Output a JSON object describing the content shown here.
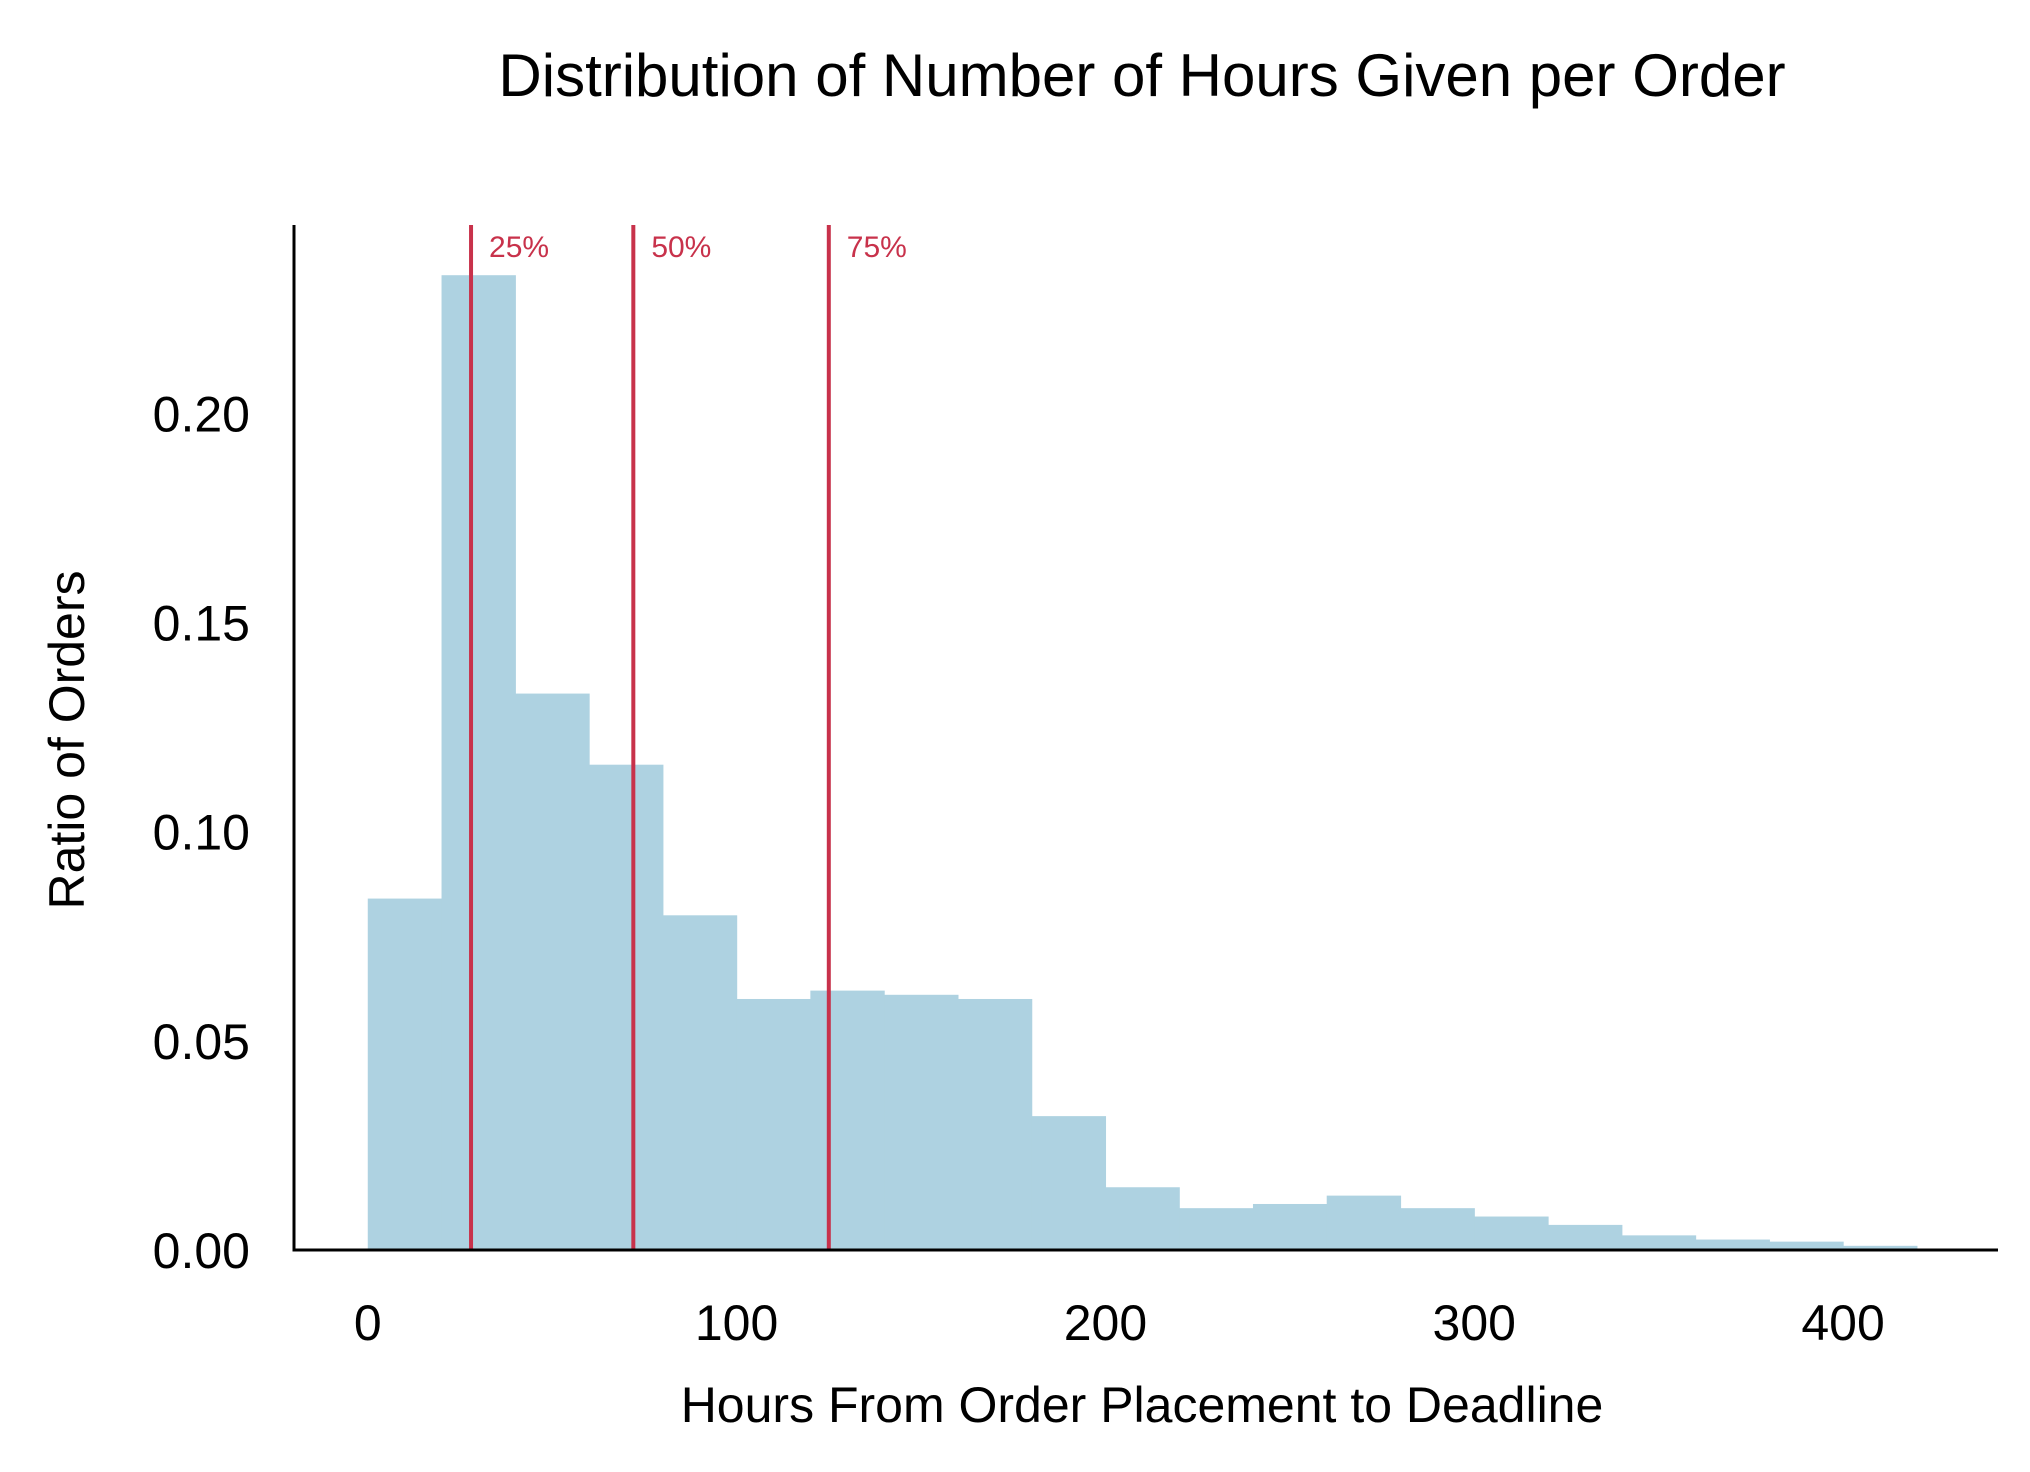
{
  "chart_data": {
    "type": "bar",
    "subtype": "histogram",
    "title": "Distribution of Number of Hours Given per Order",
    "xlabel": "Hours From Order Placement to Deadline",
    "ylabel": "Ratio of Orders",
    "xlim": [
      -20,
      442
    ],
    "ylim": [
      0,
      0.245
    ],
    "xticks": [
      0,
      100,
      200,
      300,
      400
    ],
    "xtick_labels": [
      "0",
      "100",
      "200",
      "300",
      "400"
    ],
    "yticks": [
      0,
      0.05,
      0.1,
      0.15,
      0.2
    ],
    "ytick_labels": [
      "0.00",
      "0.05",
      "0.10",
      "0.15",
      "0.20"
    ],
    "bin_width": 20,
    "bin_edges": [
      0,
      20,
      40,
      60,
      80,
      100,
      120,
      140,
      160,
      180,
      200,
      220,
      240,
      260,
      280,
      300,
      320,
      340,
      360,
      380,
      400,
      420
    ],
    "values": [
      0.084,
      0.233,
      0.133,
      0.116,
      0.08,
      0.06,
      0.062,
      0.061,
      0.06,
      0.032,
      0.015,
      0.01,
      0.011,
      0.013,
      0.01,
      0.008,
      0.006,
      0.0035,
      0.0025,
      0.002,
      0.001
    ],
    "bar_color": "#aed2e1",
    "quantiles": [
      {
        "label": "25%",
        "x": 28
      },
      {
        "label": "50%",
        "x": 72
      },
      {
        "label": "75%",
        "x": 125
      }
    ],
    "quantile_color": "#c8324b",
    "grid": false,
    "spines": [
      "left",
      "bottom"
    ]
  }
}
